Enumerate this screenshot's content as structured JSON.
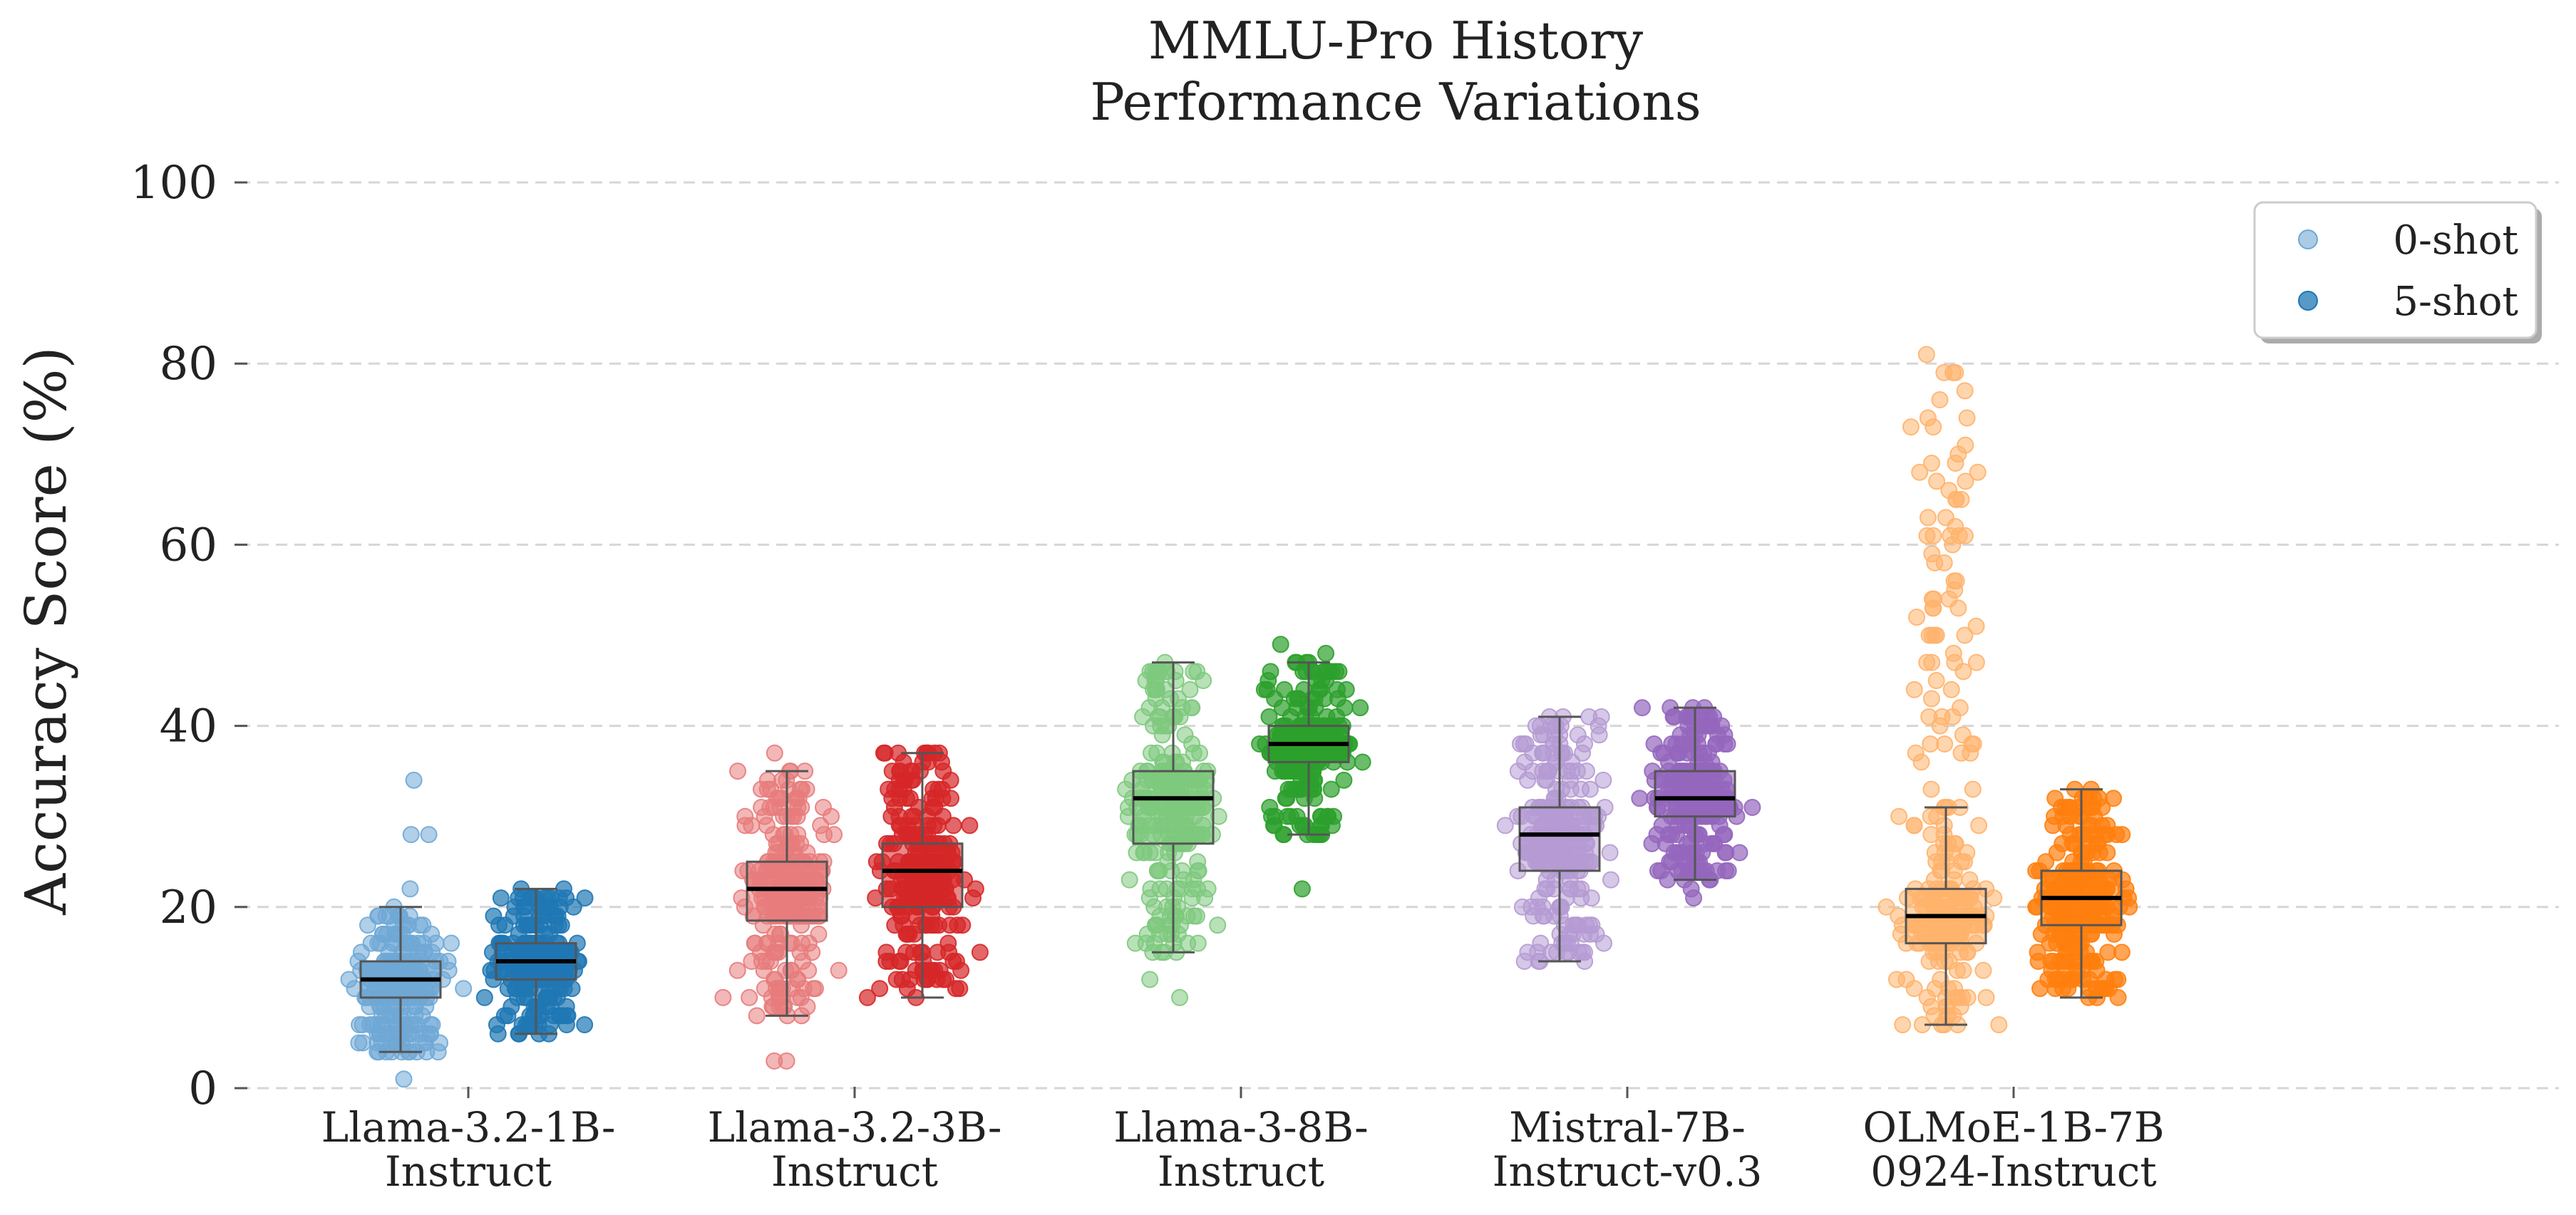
{
  "chart_data": {
    "type": "box-strip",
    "title_lines": [
      "MMLU-Pro History",
      "Performance Variations"
    ],
    "ylabel": "Accuracy Score (%)",
    "ylim": [
      0,
      100
    ],
    "yticks": [
      0,
      20,
      40,
      60,
      80,
      100
    ],
    "grid": true,
    "legend_position": "top-right",
    "categories": [
      {
        "label_lines": [
          "Llama-3.2-1B-",
          "Instruct"
        ],
        "light": "#6fa8d6",
        "dark": "#1f77b4"
      },
      {
        "label_lines": [
          "Llama-3.2-3B-",
          "Instruct"
        ],
        "light": "#e87b7b",
        "dark": "#d62728"
      },
      {
        "label_lines": [
          "Llama-3-8B-",
          "Instruct"
        ],
        "light": "#7dc97d",
        "dark": "#2ca02c"
      },
      {
        "label_lines": [
          "Mistral-7B-",
          "Instruct-v0.3"
        ],
        "light": "#b59ad3",
        "dark": "#9467bd"
      },
      {
        "label_lines": [
          "OLMoE-1B-7B",
          "0924-Instruct"
        ],
        "light": "#ffb26b",
        "dark": "#ff7f0e"
      }
    ],
    "series": [
      {
        "name": "0-shot",
        "boxes": [
          {
            "whislo": 4,
            "q1": 10,
            "med": 12,
            "q3": 14,
            "whishi": 20,
            "min": 0,
            "max": 35
          },
          {
            "whislo": 8,
            "q1": 18.5,
            "med": 22,
            "q3": 25,
            "whishi": 35,
            "min": 1,
            "max": 39
          },
          {
            "whislo": 15,
            "q1": 27,
            "med": 32,
            "q3": 35,
            "whishi": 47,
            "min": 10,
            "max": 47
          },
          {
            "whislo": 14,
            "q1": 24,
            "med": 28,
            "q3": 31,
            "whishi": 41,
            "min": 10,
            "max": 41
          },
          {
            "whislo": 7,
            "q1": 16,
            "med": 19,
            "q3": 22,
            "whishi": 31,
            "min": 6,
            "max": 82
          }
        ]
      },
      {
        "name": "5-shot",
        "boxes": [
          {
            "whislo": 6,
            "q1": 12,
            "med": 14,
            "q3": 16,
            "whishi": 22,
            "min": 6,
            "max": 24
          },
          {
            "whislo": 10,
            "q1": 20,
            "med": 24,
            "q3": 27,
            "whishi": 37,
            "min": 8,
            "max": 39
          },
          {
            "whislo": 28,
            "q1": 36,
            "med": 38,
            "q3": 40,
            "whishi": 47,
            "min": 20,
            "max": 49
          },
          {
            "whislo": 23,
            "q1": 30,
            "med": 32,
            "q3": 35,
            "whishi": 42,
            "min": 20,
            "max": 44
          },
          {
            "whislo": 10,
            "q1": 18,
            "med": 21,
            "q3": 24,
            "whishi": 33,
            "min": 10,
            "max": 33
          }
        ]
      }
    ]
  }
}
